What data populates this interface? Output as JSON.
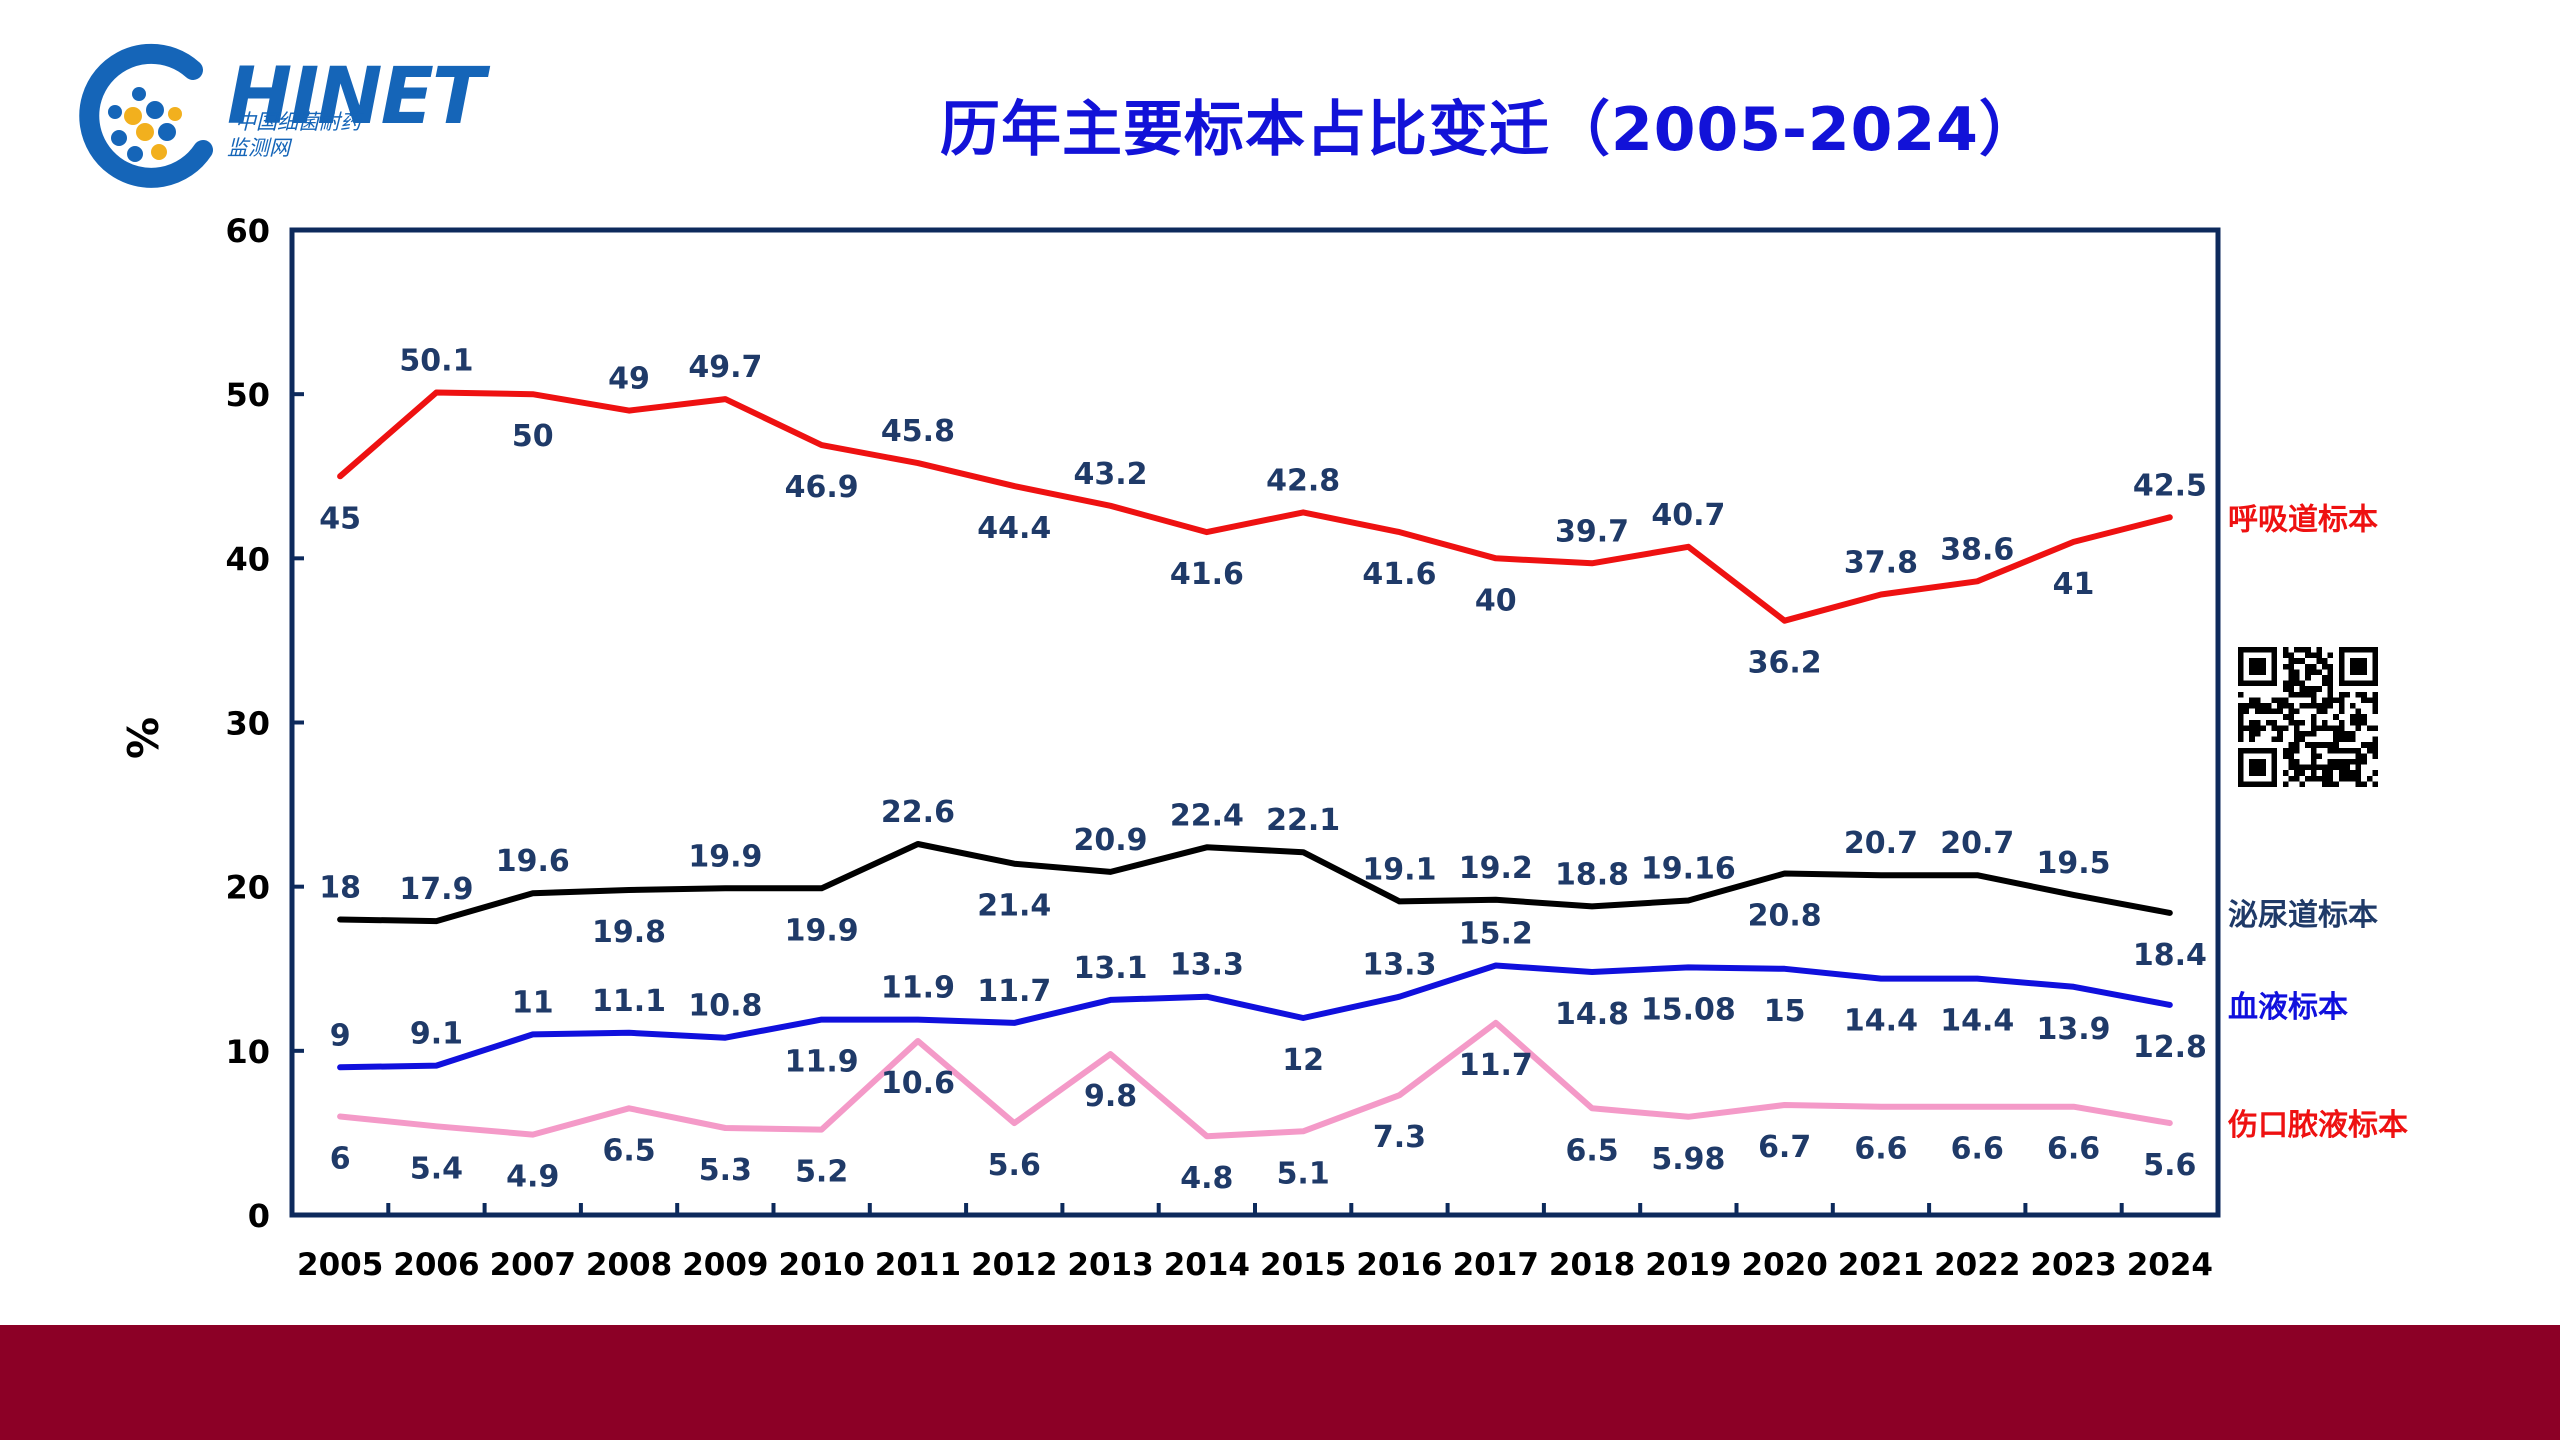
{
  "logo": {
    "name": "HINET",
    "subtitle_line1": "中国细菌耐药",
    "subtitle_line2": "监测网"
  },
  "title": "历年主要标本占比变迁（2005-2024）",
  "colors": {
    "respiratory": "#ee1111",
    "urinary": "#000000",
    "blood": "#1010dd",
    "wound": "#f49ac8",
    "label_text": "#1f3a68",
    "axis": "#0d2a5c",
    "footer": "#8c0026"
  },
  "icons": {
    "logo": "bacteria-network-logo-icon",
    "qr": "qr-code-icon"
  },
  "chart_data": {
    "type": "line",
    "ylabel": "%",
    "ylim": [
      0,
      60
    ],
    "yticks": [
      0,
      10,
      20,
      30,
      40,
      50,
      60
    ],
    "grid": false,
    "legend_placement": "right, at line ends",
    "categories": [
      "2005",
      "2006",
      "2007",
      "2008",
      "2009",
      "2010",
      "2011",
      "2012",
      "2013",
      "2014",
      "2015",
      "2016",
      "2017",
      "2018",
      "2019",
      "2020",
      "2021",
      "2022",
      "2023",
      "2024"
    ],
    "series": [
      {
        "name": "呼吸道标本",
        "color": "#ee1111",
        "values": [
          45,
          50.1,
          50,
          49,
          49.7,
          46.9,
          45.8,
          44.4,
          43.2,
          41.6,
          42.8,
          41.6,
          40,
          39.7,
          40.7,
          36.2,
          37.8,
          38.6,
          41,
          42.5
        ],
        "labels": [
          "45",
          "50.1",
          "50",
          "49",
          "49.7",
          "46.9",
          "45.8",
          "44.4",
          "43.2",
          "41.6",
          "42.8",
          "41.6",
          "40",
          "39.7",
          "40.7",
          "36.2",
          "37.8",
          "38.6",
          "41",
          "42.5"
        ],
        "label_pos": [
          "below",
          "above",
          "below",
          "above",
          "above",
          "below",
          "above",
          "below",
          "above",
          "below",
          "above",
          "below",
          "below",
          "above",
          "above",
          "below",
          "above",
          "above",
          "below",
          "above"
        ]
      },
      {
        "name": "泌尿道标本",
        "color": "#000000",
        "values": [
          18,
          17.9,
          19.6,
          19.8,
          19.9,
          19.9,
          22.6,
          21.4,
          20.9,
          22.4,
          22.1,
          19.1,
          19.2,
          18.8,
          19.16,
          20.8,
          20.7,
          20.7,
          19.5,
          18.4
        ],
        "labels": [
          "18",
          "17.9",
          "19.6",
          "19.8",
          "19.9",
          "19.9",
          "22.6",
          "21.4",
          "20.9",
          "22.4",
          "22.1",
          "19.1",
          "19.2",
          "18.8",
          "19.16",
          "20.8",
          "20.7",
          "20.7",
          "19.5",
          "18.4"
        ],
        "label_pos": [
          "above",
          "above",
          "above",
          "below",
          "above",
          "below",
          "above",
          "below",
          "above",
          "above",
          "above",
          "above",
          "above",
          "above",
          "above",
          "below",
          "above",
          "above",
          "above",
          "below"
        ]
      },
      {
        "name": "血液标本",
        "color": "#1010dd",
        "values": [
          9,
          9.1,
          11,
          11.1,
          10.8,
          11.9,
          11.9,
          11.7,
          13.1,
          13.3,
          12,
          13.3,
          15.2,
          14.8,
          15.08,
          15,
          14.4,
          14.4,
          13.9,
          12.8
        ],
        "labels": [
          "9",
          "9.1",
          "11",
          "11.1",
          "10.8",
          "11.9",
          "11.9",
          "11.7",
          "13.1",
          "13.3",
          "12",
          "13.3",
          "15.2",
          "14.8",
          "15.08",
          "15",
          "14.4",
          "14.4",
          "13.9",
          "12.8"
        ],
        "label_pos": [
          "above",
          "above",
          "above",
          "above",
          "above",
          "below",
          "above",
          "above",
          "above",
          "above",
          "below",
          "above",
          "above",
          "below",
          "below",
          "below",
          "below",
          "below",
          "below",
          "below"
        ]
      },
      {
        "name": "伤口脓液标本",
        "color": "#f49ac8",
        "values": [
          6,
          5.4,
          4.9,
          6.5,
          5.3,
          5.2,
          10.6,
          5.6,
          9.8,
          4.8,
          5.1,
          7.3,
          11.7,
          6.5,
          5.98,
          6.7,
          6.6,
          6.6,
          6.6,
          5.6
        ],
        "labels": [
          "6",
          "5.4",
          "4.9",
          "6.5",
          "5.3",
          "5.2",
          "10.6",
          "5.6",
          "9.8",
          "4.8",
          "5.1",
          "7.3",
          "11.7",
          "6.5",
          "5.98",
          "6.7",
          "6.6",
          "6.6",
          "6.6",
          "5.6"
        ],
        "label_pos": [
          "below",
          "below",
          "below",
          "below",
          "below",
          "below",
          "below",
          "below",
          "below",
          "below",
          "below",
          "below",
          "below",
          "below",
          "below",
          "below",
          "below",
          "below",
          "below",
          "below"
        ]
      }
    ]
  }
}
